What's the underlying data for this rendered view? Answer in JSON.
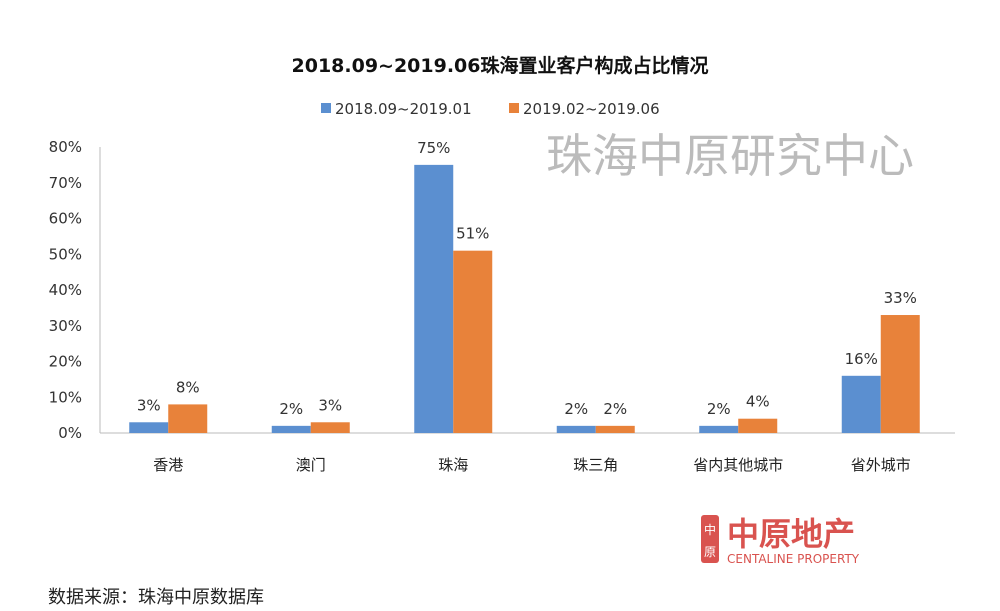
{
  "chart_data": {
    "type": "bar",
    "title": "2018.09~2019.06珠海置业客户构成占比情况",
    "categories": [
      "香港",
      "澳门",
      "珠海",
      "珠三角",
      "省内其他城市",
      "省外城市"
    ],
    "series": [
      {
        "name": "2018.09~2019.01",
        "color": "#5b8fd0",
        "values": [
          3,
          2,
          75,
          2,
          2,
          16
        ],
        "labels": [
          "3%",
          "2%",
          "75%",
          "2%",
          "2%",
          "16%"
        ]
      },
      {
        "name": "2019.02~2019.06",
        "color": "#e8823a",
        "values": [
          8,
          3,
          51,
          2,
          4,
          33
        ],
        "labels": [
          "8%",
          "3%",
          "51%",
          "2%",
          "4%",
          "33%"
        ]
      }
    ],
    "ylim": [
      0,
      80
    ],
    "yticks": [
      "0%",
      "10%",
      "20%",
      "30%",
      "40%",
      "50%",
      "60%",
      "70%",
      "80%"
    ],
    "legend_position": "top",
    "grid": false
  },
  "watermark": "珠海中原研究中心",
  "logo": {
    "cn": "中原地产",
    "en": "CENTALINE PROPERTY",
    "seal": "中原",
    "color": "#d9534f"
  },
  "source": "数据来源：珠海中原数据库"
}
